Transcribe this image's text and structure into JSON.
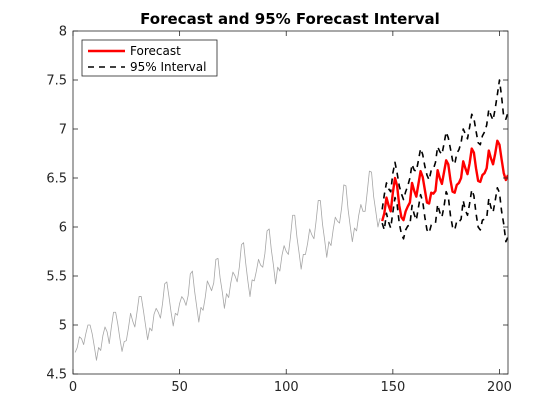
{
  "chart_data": {
    "type": "line",
    "title": "Forecast and 95% Forecast Interval",
    "xlabel": "",
    "ylabel": "",
    "xlim": [
      0,
      204
    ],
    "ylim": [
      4.5,
      8
    ],
    "xticks": [
      0,
      50,
      100,
      150,
      200
    ],
    "yticks": [
      4.5,
      5,
      5.5,
      6,
      6.5,
      7,
      7.5,
      8
    ],
    "grid": false,
    "legend": {
      "position": "top-left",
      "entries": [
        "Forecast",
        "95% Interval"
      ]
    },
    "colors": {
      "observed": "#a6a6a6",
      "forecast": "#ff0000",
      "interval": "#000000"
    },
    "series": [
      {
        "role": "observed",
        "x_start": 1,
        "values": [
          4.72,
          4.77,
          4.88,
          4.86,
          4.8,
          4.91,
          5.0,
          5.0,
          4.91,
          4.78,
          4.64,
          4.77,
          4.74,
          4.89,
          4.98,
          4.93,
          4.81,
          4.98,
          5.13,
          5.13,
          5.01,
          4.86,
          4.73,
          4.83,
          4.84,
          4.97,
          5.12,
          5.04,
          4.98,
          5.13,
          5.29,
          5.29,
          5.15,
          5.0,
          4.85,
          4.97,
          4.94,
          5.11,
          5.17,
          5.13,
          5.07,
          5.22,
          5.42,
          5.44,
          5.29,
          5.13,
          4.99,
          5.12,
          5.1,
          5.22,
          5.29,
          5.26,
          5.2,
          5.3,
          5.52,
          5.55,
          5.35,
          5.19,
          5.03,
          5.18,
          5.15,
          5.28,
          5.45,
          5.4,
          5.35,
          5.43,
          5.67,
          5.68,
          5.48,
          5.34,
          5.17,
          5.32,
          5.28,
          5.43,
          5.54,
          5.5,
          5.44,
          5.59,
          5.82,
          5.84,
          5.63,
          5.45,
          5.29,
          5.46,
          5.45,
          5.55,
          5.67,
          5.61,
          5.59,
          5.73,
          5.96,
          5.98,
          5.77,
          5.61,
          5.42,
          5.59,
          5.55,
          5.71,
          5.81,
          5.75,
          5.72,
          5.9,
          6.12,
          6.12,
          5.9,
          5.74,
          5.57,
          5.72,
          5.72,
          5.83,
          5.98,
          5.92,
          5.88,
          6.06,
          6.27,
          6.27,
          6.03,
          5.87,
          5.69,
          5.85,
          5.81,
          5.97,
          6.1,
          6.06,
          6.04,
          6.2,
          6.43,
          6.42,
          6.18,
          6.01,
          5.85,
          5.99,
          5.96,
          6.12,
          6.23,
          6.16,
          6.16,
          6.36,
          6.57,
          6.56,
          6.31,
          6.16,
          6.0,
          6.09
        ]
      },
      {
        "name": "Forecast",
        "role": "forecast",
        "x_start": 145,
        "values": [
          6.06,
          6.14,
          6.3,
          6.22,
          6.16,
          6.35,
          6.5,
          6.42,
          6.22,
          6.1,
          6.07,
          6.16,
          6.21,
          6.25,
          6.45,
          6.37,
          6.31,
          6.44,
          6.57,
          6.51,
          6.38,
          6.25,
          6.24,
          6.35,
          6.34,
          6.37,
          6.58,
          6.5,
          6.44,
          6.56,
          6.68,
          6.64,
          6.48,
          6.36,
          6.35,
          6.43,
          6.45,
          6.5,
          6.67,
          6.6,
          6.54,
          6.65,
          6.8,
          6.76,
          6.6,
          6.47,
          6.46,
          6.53,
          6.55,
          6.6,
          6.78,
          6.7,
          6.64,
          6.75,
          6.88,
          6.84,
          6.69,
          6.55,
          6.48,
          6.53
        ]
      },
      {
        "name": "95% Interval",
        "role": "interval-upper",
        "x_start": 145,
        "values": [
          6.18,
          6.33,
          6.45,
          6.39,
          6.36,
          6.55,
          6.66,
          6.55,
          6.42,
          6.34,
          6.28,
          6.36,
          6.42,
          6.5,
          6.64,
          6.58,
          6.57,
          6.68,
          6.8,
          6.74,
          6.62,
          6.53,
          6.48,
          6.58,
          6.59,
          6.66,
          6.82,
          6.77,
          6.74,
          6.85,
          6.97,
          6.91,
          6.8,
          6.68,
          6.64,
          6.75,
          6.79,
          6.86,
          7.0,
          6.95,
          6.9,
          7.02,
          7.15,
          7.11,
          6.98,
          6.86,
          6.84,
          6.93,
          6.97,
          7.04,
          7.2,
          7.14,
          7.09,
          7.21,
          7.35,
          7.5,
          7.33,
          7.12,
          7.1,
          7.17
        ]
      },
      {
        "role": "interval-lower",
        "x_start": 145,
        "values": [
          6.04,
          5.97,
          6.14,
          6.05,
          5.99,
          6.15,
          6.3,
          6.23,
          6.04,
          5.93,
          5.88,
          5.97,
          6.01,
          6.02,
          6.22,
          6.13,
          6.07,
          6.2,
          6.33,
          6.26,
          6.1,
          5.97,
          5.94,
          6.02,
          6.04,
          6.04,
          6.23,
          6.15,
          6.1,
          6.21,
          6.36,
          6.31,
          6.12,
          6.0,
          5.97,
          6.06,
          6.05,
          6.08,
          6.27,
          6.17,
          6.12,
          6.24,
          6.38,
          6.32,
          6.14,
          6.0,
          5.97,
          6.07,
          6.08,
          6.09,
          6.29,
          6.2,
          6.15,
          6.27,
          6.4,
          6.35,
          6.16,
          6.03,
          5.85,
          5.9
        ]
      }
    ]
  }
}
